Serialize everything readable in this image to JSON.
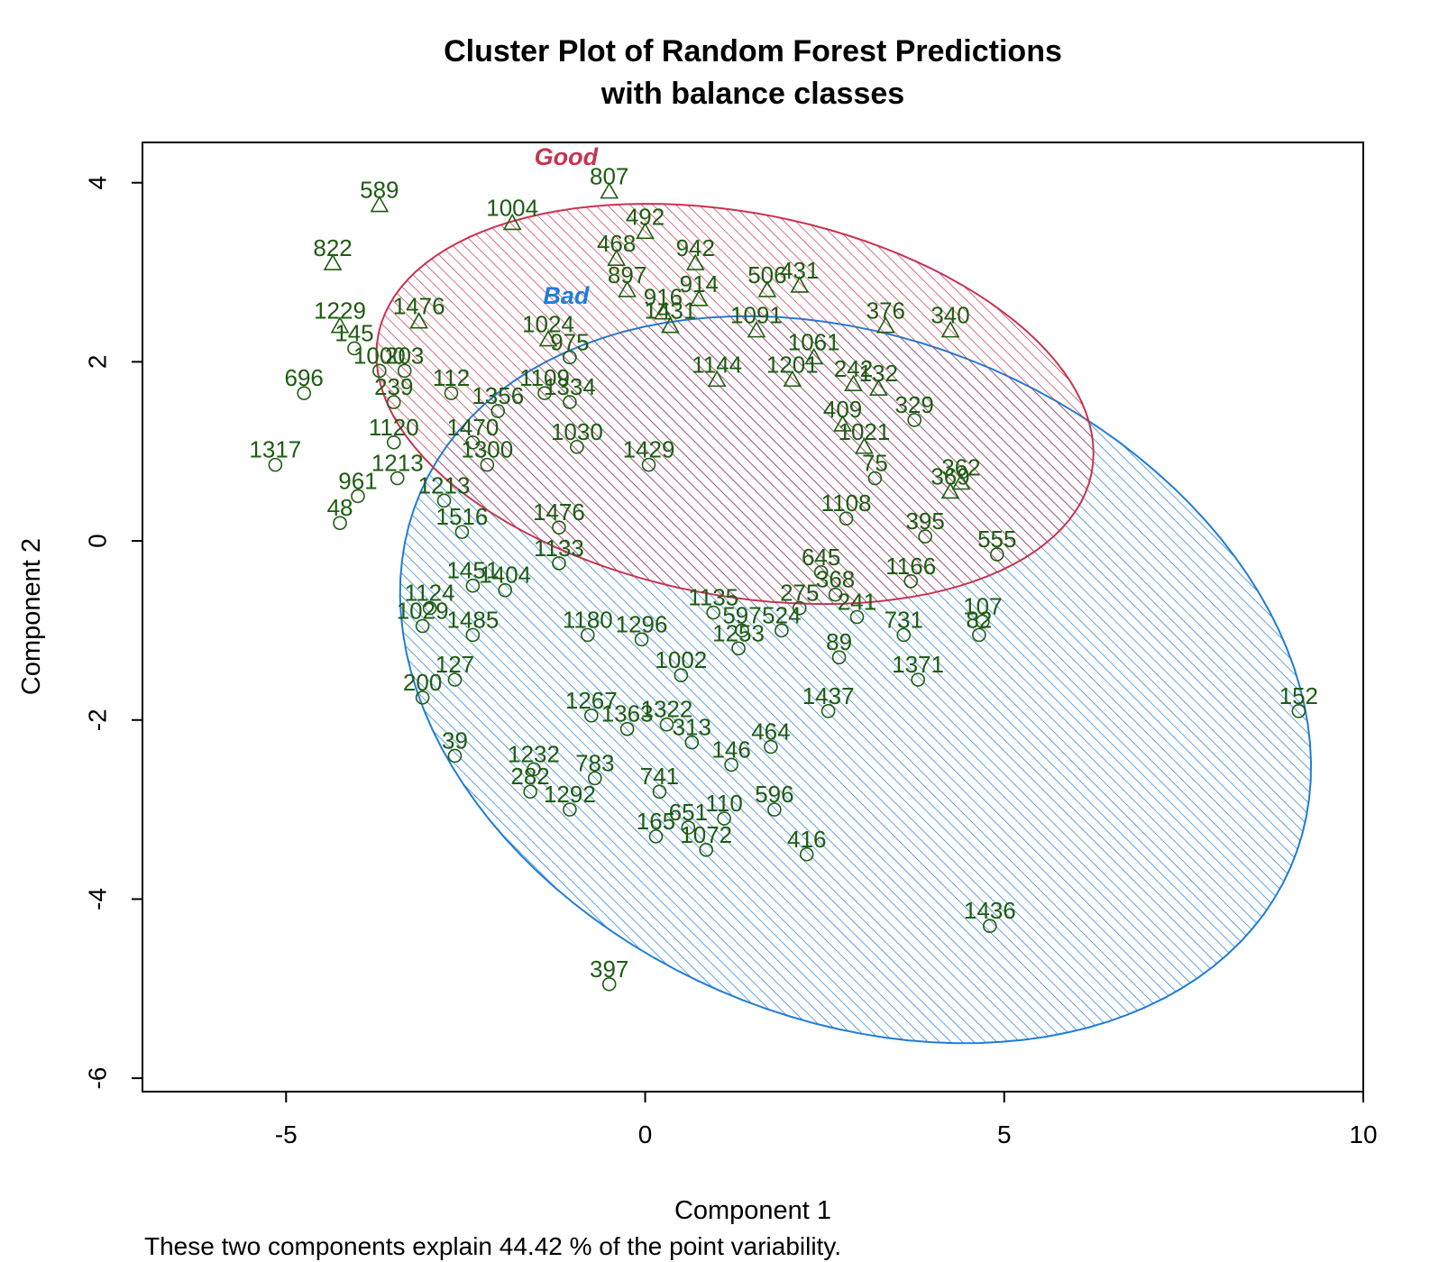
{
  "chart_data": {
    "type": "scatter",
    "title_line1": "Cluster Plot of Random Forest Predictions",
    "title_line2": "with balance classes",
    "xlabel": "Component 1",
    "ylabel": "Component 2",
    "footnote": "These two components explain 44.42 % of the point variability.",
    "xlim": [
      -7.0,
      10.0
    ],
    "ylim": [
      -6.15,
      4.45
    ],
    "x_ticks": [
      -5,
      0,
      5,
      10
    ],
    "y_ticks": [
      -6,
      -4,
      -2,
      0,
      2,
      4
    ],
    "x_tick_labels": [
      "-5",
      "0",
      "5",
      "10"
    ],
    "y_tick_labels": [
      "-6",
      "-4",
      "-2",
      "0",
      "2",
      "4"
    ],
    "colors": {
      "good": "#C8334F",
      "bad": "#1E7CD8",
      "points": "#1E5C12",
      "axis": "#000000"
    },
    "clusters": [
      {
        "name": "Good",
        "color": "#C8334F",
        "center": [
          1.25,
          1.53
        ],
        "semi_major": 5.03,
        "semi_minor": 2.15,
        "angle_deg": -7.7,
        "label_pos": [
          -1.1,
          4.2
        ]
      },
      {
        "name": "Bad",
        "color": "#1E7CD8",
        "center": [
          2.93,
          -1.55
        ],
        "semi_major": 6.46,
        "semi_minor": 3.87,
        "angle_deg": -13.7,
        "label_pos": [
          -1.1,
          2.65
        ]
      }
    ],
    "points": [
      {
        "label": "589",
        "x": -3.7,
        "y": 3.75,
        "shape": "triangle"
      },
      {
        "label": "807",
        "x": -0.5,
        "y": 3.9,
        "shape": "triangle"
      },
      {
        "label": "1004",
        "x": -1.85,
        "y": 3.55,
        "shape": "triangle"
      },
      {
        "label": "492",
        "x": 0.0,
        "y": 3.45,
        "shape": "triangle"
      },
      {
        "label": "822",
        "x": -4.35,
        "y": 3.1,
        "shape": "triangle"
      },
      {
        "label": "468",
        "x": -0.4,
        "y": 3.15,
        "shape": "triangle"
      },
      {
        "label": "942",
        "x": 0.7,
        "y": 3.1,
        "shape": "triangle"
      },
      {
        "label": "506",
        "x": 1.7,
        "y": 2.8,
        "shape": "triangle"
      },
      {
        "label": "431",
        "x": 2.15,
        "y": 2.85,
        "shape": "triangle"
      },
      {
        "label": "897",
        "x": -0.25,
        "y": 2.8,
        "shape": "triangle"
      },
      {
        "label": "914",
        "x": 0.75,
        "y": 2.7,
        "shape": "triangle"
      },
      {
        "label": "916",
        "x": 0.25,
        "y": 2.55,
        "shape": "triangle"
      },
      {
        "label": "1476",
        "x": -3.15,
        "y": 2.45,
        "shape": "triangle"
      },
      {
        "label": "1229",
        "x": -4.25,
        "y": 2.4,
        "shape": "triangle"
      },
      {
        "label": "376",
        "x": 3.35,
        "y": 2.4,
        "shape": "triangle"
      },
      {
        "label": "340",
        "x": 4.25,
        "y": 2.35,
        "shape": "triangle"
      },
      {
        "label": "1024",
        "x": -1.35,
        "y": 2.25,
        "shape": "triangle"
      },
      {
        "label": "145",
        "x": -4.05,
        "y": 2.15,
        "shape": "circle"
      },
      {
        "label": "975",
        "x": -1.05,
        "y": 2.05,
        "shape": "circle"
      },
      {
        "label": "1061",
        "x": 2.35,
        "y": 2.05,
        "shape": "triangle"
      },
      {
        "label": "1000",
        "x": -3.7,
        "y": 1.9,
        "shape": "circle"
      },
      {
        "label": "203",
        "x": -3.35,
        "y": 1.9,
        "shape": "circle"
      },
      {
        "label": "1109",
        "x": -1.4,
        "y": 1.65,
        "shape": "circle"
      },
      {
        "label": "112",
        "x": -2.7,
        "y": 1.65,
        "shape": "circle"
      },
      {
        "label": "696",
        "x": -4.75,
        "y": 1.65,
        "shape": "circle"
      },
      {
        "label": "242",
        "x": 2.9,
        "y": 1.75,
        "shape": "triangle"
      },
      {
        "label": "132",
        "x": 3.25,
        "y": 1.7,
        "shape": "triangle"
      },
      {
        "label": "239",
        "x": -3.5,
        "y": 1.55,
        "shape": "circle"
      },
      {
        "label": "1334",
        "x": -1.05,
        "y": 1.55,
        "shape": "circle"
      },
      {
        "label": "329",
        "x": 3.75,
        "y": 1.35,
        "shape": "circle"
      },
      {
        "label": "409",
        "x": 2.75,
        "y": 1.3,
        "shape": "triangle"
      },
      {
        "label": "1120",
        "x": -3.5,
        "y": 1.1,
        "shape": "circle"
      },
      {
        "label": "1317",
        "x": -5.15,
        "y": 0.85,
        "shape": "circle"
      },
      {
        "label": "1300",
        "x": -2.2,
        "y": 0.85,
        "shape": "circle"
      },
      {
        "label": "961",
        "x": -4.0,
        "y": 0.5,
        "shape": "circle"
      },
      {
        "label": "362",
        "x": 4.4,
        "y": 0.65,
        "shape": "triangle"
      },
      {
        "label": "369",
        "x": 4.25,
        "y": 0.55,
        "shape": "triangle"
      },
      {
        "label": "48",
        "x": -4.25,
        "y": 0.2,
        "shape": "circle"
      },
      {
        "label": "395",
        "x": 3.9,
        "y": 0.05,
        "shape": "circle"
      },
      {
        "label": "555",
        "x": 4.9,
        "y": -0.15,
        "shape": "circle"
      },
      {
        "label": "1166",
        "x": 3.7,
        "y": -0.45,
        "shape": "circle"
      },
      {
        "label": "368",
        "x": 2.65,
        "y": -0.6,
        "shape": "circle"
      },
      {
        "label": "241",
        "x": 2.95,
        "y": -0.85,
        "shape": "circle"
      },
      {
        "label": "731",
        "x": 3.6,
        "y": -1.05,
        "shape": "circle"
      },
      {
        "label": "107",
        "x": 4.7,
        "y": -0.9,
        "shape": "circle"
      },
      {
        "label": "82",
        "x": 4.65,
        "y": -1.05,
        "shape": "circle"
      },
      {
        "label": "275",
        "x": 2.15,
        "y": -0.75,
        "shape": "circle"
      },
      {
        "label": "1485",
        "x": -2.4,
        "y": -1.05,
        "shape": "circle"
      },
      {
        "label": "1029",
        "x": -3.1,
        "y": -0.95,
        "shape": "circle"
      },
      {
        "label": "89",
        "x": 2.7,
        "y": -1.3,
        "shape": "circle"
      },
      {
        "label": "1371",
        "x": 3.8,
        "y": -1.55,
        "shape": "circle"
      },
      {
        "label": "127",
        "x": -2.65,
        "y": -1.55,
        "shape": "circle"
      },
      {
        "label": "200",
        "x": -3.1,
        "y": -1.75,
        "shape": "circle"
      },
      {
        "label": "1437",
        "x": 2.55,
        "y": -1.9,
        "shape": "circle"
      },
      {
        "label": "152",
        "x": 9.1,
        "y": -1.9,
        "shape": "circle"
      },
      {
        "label": "39",
        "x": -2.65,
        "y": -2.4,
        "shape": "circle"
      },
      {
        "label": "464",
        "x": 1.75,
        "y": -2.3,
        "shape": "circle"
      },
      {
        "label": "146",
        "x": 1.2,
        "y": -2.5,
        "shape": "circle"
      },
      {
        "label": "1232",
        "x": -1.55,
        "y": -2.55,
        "shape": "circle"
      },
      {
        "label": "282",
        "x": -1.6,
        "y": -2.8,
        "shape": "circle"
      },
      {
        "label": "1292",
        "x": -1.05,
        "y": -3.0,
        "shape": "circle"
      },
      {
        "label": "596",
        "x": 1.8,
        "y": -3.0,
        "shape": "circle"
      },
      {
        "label": "651",
        "x": 0.6,
        "y": -3.2,
        "shape": "circle"
      },
      {
        "label": "110",
        "x": 1.1,
        "y": -3.1,
        "shape": "circle"
      },
      {
        "label": "165",
        "x": 0.15,
        "y": -3.3,
        "shape": "circle"
      },
      {
        "label": "1072",
        "x": 0.85,
        "y": -3.45,
        "shape": "circle"
      },
      {
        "label": "416",
        "x": 2.25,
        "y": -3.5,
        "shape": "circle"
      },
      {
        "label": "1436",
        "x": 4.8,
        "y": -4.3,
        "shape": "circle"
      },
      {
        "label": "397",
        "x": -0.5,
        "y": -4.95,
        "shape": "circle"
      },
      {
        "label": "783",
        "x": -0.7,
        "y": -2.65,
        "shape": "circle"
      },
      {
        "label": "1322",
        "x": 0.3,
        "y": -2.05,
        "shape": "circle"
      },
      {
        "label": "524",
        "x": 1.9,
        "y": -1.0,
        "shape": "circle"
      },
      {
        "label": "1253",
        "x": 1.3,
        "y": -1.2,
        "shape": "circle"
      },
      {
        "label": "1124",
        "x": -3.0,
        "y": -0.75,
        "shape": "circle"
      },
      {
        "label": "1451",
        "x": -2.4,
        "y": -0.5,
        "shape": "circle"
      },
      {
        "label": "1404",
        "x": -1.95,
        "y": -0.55,
        "shape": "circle"
      },
      {
        "label": "1021",
        "x": 3.05,
        "y": 1.05,
        "shape": "triangle"
      },
      {
        "label": "75",
        "x": 3.2,
        "y": 0.7,
        "shape": "circle"
      },
      {
        "label": "1108",
        "x": 2.8,
        "y": 0.25,
        "shape": "circle"
      },
      {
        "label": "645",
        "x": 2.45,
        "y": -0.35,
        "shape": "circle"
      },
      {
        "label": "1201",
        "x": 2.05,
        "y": 1.8,
        "shape": "triangle"
      },
      {
        "label": "1431",
        "x": 0.35,
        "y": 2.4,
        "shape": "triangle"
      },
      {
        "label": "1356",
        "x": -2.05,
        "y": 1.45,
        "shape": "circle"
      },
      {
        "label": "1470",
        "x": -2.4,
        "y": 1.1,
        "shape": "circle"
      },
      {
        "label": "1030",
        "x": -0.95,
        "y": 1.05,
        "shape": "circle"
      },
      {
        "label": "1429",
        "x": 0.05,
        "y": 0.85,
        "shape": "circle"
      },
      {
        "label": "1213",
        "x": -3.45,
        "y": 0.7,
        "shape": "circle"
      },
      {
        "label": "1213",
        "x": -2.8,
        "y": 0.45,
        "shape": "circle"
      },
      {
        "label": "1516",
        "x": -2.55,
        "y": 0.1,
        "shape": "circle"
      },
      {
        "label": "1267",
        "x": -0.75,
        "y": -1.95,
        "shape": "circle"
      },
      {
        "label": "1363",
        "x": -0.25,
        "y": -2.1,
        "shape": "circle"
      },
      {
        "label": "313",
        "x": 0.65,
        "y": -2.25,
        "shape": "circle"
      },
      {
        "label": "741",
        "x": 0.2,
        "y": -2.8,
        "shape": "circle"
      },
      {
        "label": "1180",
        "x": -0.8,
        "y": -1.05,
        "shape": "circle"
      },
      {
        "label": "1135",
        "x": 0.95,
        "y": -0.8,
        "shape": "circle"
      },
      {
        "label": "597",
        "x": 1.35,
        "y": -1.0,
        "shape": "circle"
      },
      {
        "label": "1476",
        "x": -1.2,
        "y": 0.15,
        "shape": "circle"
      },
      {
        "label": "1091",
        "x": 1.55,
        "y": 2.35,
        "shape": "triangle"
      },
      {
        "label": "1144",
        "x": 1.0,
        "y": 1.8,
        "shape": "triangle"
      },
      {
        "label": "1133",
        "x": -1.2,
        "y": -0.25,
        "shape": "circle"
      },
      {
        "label": "1002",
        "x": 0.5,
        "y": -1.5,
        "shape": "circle"
      },
      {
        "label": "1296",
        "x": -0.05,
        "y": -1.1,
        "shape": "circle"
      }
    ]
  }
}
